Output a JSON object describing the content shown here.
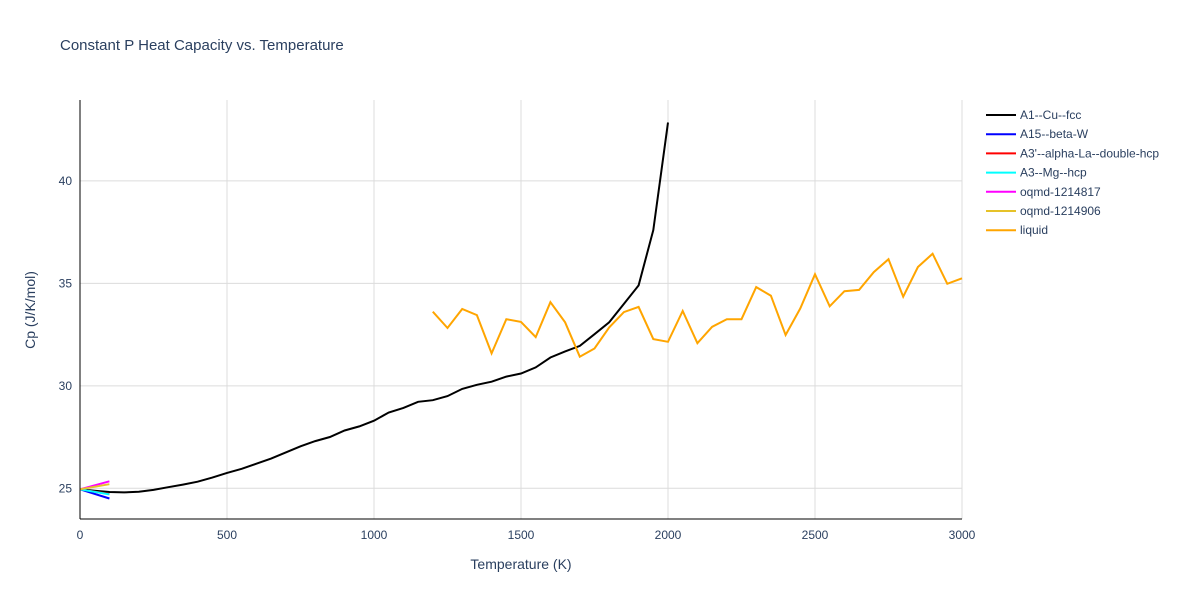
{
  "chart_data": {
    "type": "line",
    "title": "Constant P Heat Capacity vs. Temperature",
    "xlabel": "Temperature (K)",
    "ylabel": "Cp (J/K/mol)",
    "xlim": [
      0,
      3000
    ],
    "ylim": [
      23.5,
      43.95
    ],
    "xticks": [
      0,
      500,
      1000,
      1500,
      2000,
      2500,
      3000
    ],
    "yticks": [
      25,
      30,
      35,
      40
    ],
    "grid": true,
    "legend_position": "right",
    "series": [
      {
        "name": "A1--Cu--fcc",
        "color": "#000000",
        "x": [
          0,
          50,
          100,
          150,
          200,
          250,
          300,
          350,
          400,
          450,
          500,
          550,
          600,
          650,
          700,
          750,
          800,
          850,
          900,
          950,
          1000,
          1050,
          1100,
          1150,
          1200,
          1250,
          1300,
          1350,
          1400,
          1450,
          1500,
          1550,
          1600,
          1650,
          1700,
          1750,
          1800,
          1850,
          1900,
          1950,
          2000
        ],
        "y": [
          24.95,
          24.88,
          24.82,
          24.8,
          24.83,
          24.92,
          25.05,
          25.18,
          25.32,
          25.52,
          25.75,
          25.95,
          26.2,
          26.45,
          26.75,
          27.05,
          27.3,
          27.5,
          27.82,
          28.02,
          28.3,
          28.7,
          28.92,
          29.22,
          29.3,
          29.5,
          29.85,
          30.05,
          30.2,
          30.45,
          30.6,
          30.9,
          31.38,
          31.68,
          31.95,
          32.52,
          33.1,
          34.0,
          34.9,
          37.6,
          42.85
        ]
      },
      {
        "name": "A15--beta-W",
        "color": "#0000ff",
        "x": [
          0,
          100
        ],
        "y": [
          24.95,
          24.5
        ]
      },
      {
        "name": "A3'--alpha-La--double-hcp",
        "color": "#ff0000",
        "x": [
          0,
          100
        ],
        "y": [
          24.95,
          24.72
        ]
      },
      {
        "name": "A3--Mg--hcp",
        "color": "#00ffff",
        "x": [
          0,
          100
        ],
        "y": [
          24.95,
          24.7
        ]
      },
      {
        "name": "oqmd-1214817",
        "color": "#ff00ff",
        "x": [
          0,
          100
        ],
        "y": [
          24.95,
          25.34
        ]
      },
      {
        "name": "oqmd-1214906",
        "color": "#e6c229",
        "x": [
          0,
          100
        ],
        "y": [
          24.95,
          25.2
        ]
      },
      {
        "name": "liquid",
        "color": "#ffa500",
        "x": [
          1200,
          1250,
          1300,
          1350,
          1400,
          1450,
          1500,
          1550,
          1600,
          1650,
          1700,
          1750,
          1800,
          1850,
          1900,
          1950,
          2000,
          2050,
          2100,
          2150,
          2200,
          2250,
          2300,
          2350,
          2400,
          2450,
          2500,
          2550,
          2600,
          2650,
          2700,
          2750,
          2800,
          2850,
          2900,
          2950,
          3000
        ],
        "y": [
          33.62,
          32.82,
          33.75,
          33.45,
          31.58,
          33.25,
          33.12,
          32.38,
          34.08,
          33.1,
          31.42,
          31.82,
          32.85,
          33.6,
          33.85,
          32.28,
          32.15,
          33.65,
          32.08,
          32.88,
          33.25,
          33.25,
          34.82,
          34.4,
          32.48,
          33.78,
          35.45,
          33.88,
          34.62,
          34.68,
          35.55,
          36.18,
          34.35,
          35.8,
          36.45,
          34.98,
          35.25
        ]
      }
    ]
  }
}
